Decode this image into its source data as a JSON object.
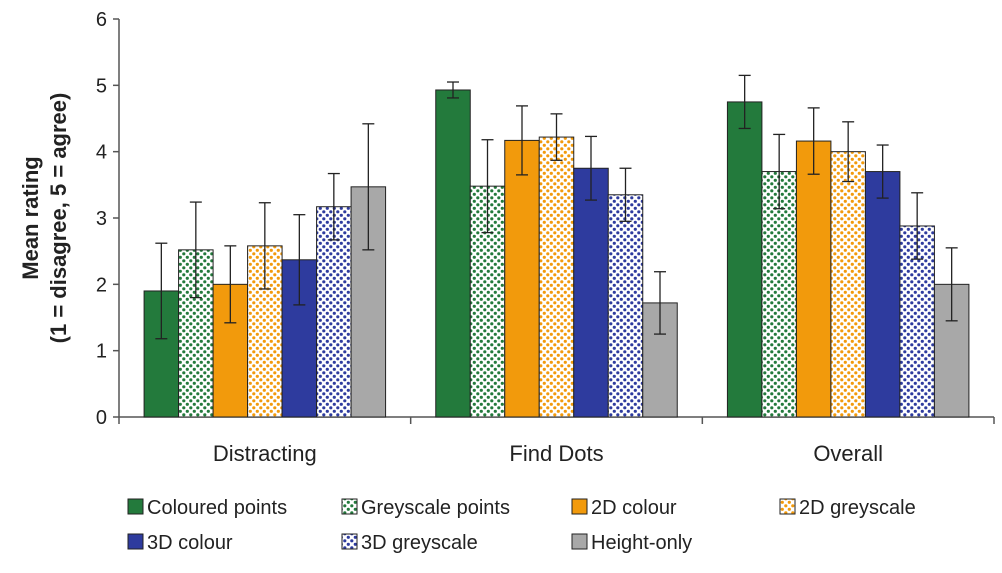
{
  "chart_data": {
    "type": "bar",
    "categories": [
      "Distracting",
      "Find Dots",
      "Overall"
    ],
    "ylabel_lines": [
      "Mean rating",
      "(1 = disagree, 5 = agree)"
    ],
    "ylim": [
      0,
      6
    ],
    "yticks": [
      "0",
      "1",
      "2",
      "3",
      "4",
      "5",
      "6"
    ],
    "grid": false,
    "legend_position": "bottom",
    "series": [
      {
        "name": "Coloured points",
        "color": "#237a3c",
        "pattern": "solid",
        "values": [
          1.9,
          4.93,
          4.75
        ],
        "errors": [
          0.72,
          0.12,
          0.4
        ]
      },
      {
        "name": "Greyscale points",
        "color": "#237a3c",
        "pattern": "dots",
        "values": [
          2.52,
          3.48,
          3.7
        ],
        "errors": [
          0.72,
          0.7,
          0.56
        ]
      },
      {
        "name": "2D colour",
        "color": "#f29a0c",
        "pattern": "solid",
        "values": [
          2.0,
          4.17,
          4.16
        ],
        "errors": [
          0.58,
          0.52,
          0.5
        ]
      },
      {
        "name": "2D greyscale",
        "color": "#f29a0c",
        "pattern": "dots",
        "values": [
          2.58,
          4.22,
          4.0
        ],
        "errors": [
          0.65,
          0.35,
          0.45
        ]
      },
      {
        "name": "3D colour",
        "color": "#2e3b9e",
        "pattern": "solid",
        "values": [
          2.37,
          3.75,
          3.7
        ],
        "errors": [
          0.68,
          0.48,
          0.4
        ]
      },
      {
        "name": "3D greyscale",
        "color": "#2e3b9e",
        "pattern": "dots",
        "values": [
          3.17,
          3.35,
          2.88
        ],
        "errors": [
          0.5,
          0.4,
          0.5
        ]
      },
      {
        "name": "Height-only",
        "color": "#a8a8a8",
        "pattern": "solid",
        "values": [
          3.47,
          1.72,
          2.0
        ],
        "errors": [
          0.95,
          0.47,
          0.55
        ]
      }
    ]
  }
}
